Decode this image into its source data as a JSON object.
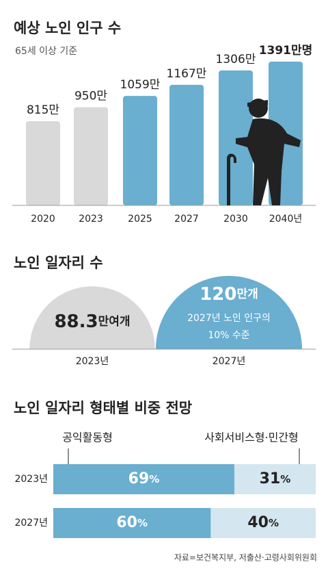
{
  "chart_data": [
    {
      "type": "bar",
      "title": "예상 노인 인구 수",
      "subtitle": "65세 이상 기준",
      "categories": [
        "2020",
        "2023",
        "2025",
        "2027",
        "2030",
        "2040년"
      ],
      "values": [
        815,
        950,
        1059,
        1167,
        1306,
        1391
      ],
      "value_labels": [
        "815만",
        "950만",
        "1059만",
        "1167만",
        "1306만",
        "1391만명"
      ],
      "colors": [
        "#d9d9d9",
        "#d9d9d9",
        "#6aaed0",
        "#6aaed0",
        "#6aaed0",
        "#6aaed0"
      ],
      "ylim": [
        0,
        1400
      ]
    },
    {
      "type": "semicircle",
      "title": "노인 일자리 수",
      "categories": [
        "2023년",
        "2027년"
      ],
      "values": [
        88.3,
        120
      ],
      "value_labels": [
        "88.3만여개",
        "120만개"
      ],
      "colors": [
        "#d9d9d9",
        "#6aaed0"
      ],
      "annotation": [
        "2027년 노인 인구의",
        "10% 수준"
      ]
    },
    {
      "type": "stacked-bar",
      "title": "노인 일자리 형태별 비중 전망",
      "categories": [
        "2023년",
        "2027년"
      ],
      "series": [
        {
          "name": "공익활동형",
          "color": "#6aaed0",
          "values": [
            69,
            60
          ],
          "value_labels": [
            "69%",
            "60%"
          ]
        },
        {
          "name": "사회서비스형·민간형",
          "color": "#d4e6ef",
          "values": [
            31,
            40
          ],
          "value_labels": [
            "31%",
            "40%"
          ]
        }
      ],
      "xlim": [
        0,
        100
      ]
    }
  ],
  "source": "자료=보건복지부, 저출산·고령사회위원회"
}
